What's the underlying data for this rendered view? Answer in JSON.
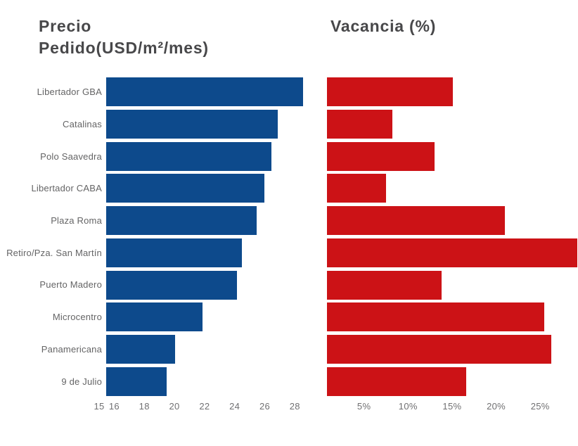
{
  "titles": {
    "left_line1": "Precio",
    "left_line2": "Pedido(USD/m²/mes)",
    "right": "Vacancia (%)"
  },
  "colors": {
    "background": "#ffffff",
    "precio_bar": "#0d4a8c",
    "vacancia_bar": "#cc1216",
    "title_text": "#48484a",
    "category_label_text": "#646465",
    "tick_label_text": "#707072"
  },
  "chart_data": [
    {
      "type": "bar",
      "orientation": "horizontal",
      "title": "Precio Pedido(USD/m²/mes)",
      "unit": "USD/m²/mes",
      "categories": [
        "Libertador GBA",
        "Catalinas",
        "Polo Saavedra",
        "Libertador CABA",
        "Plaza Roma",
        "Retiro/Pza. San Martín",
        "Puerto Madero",
        "Microcentro",
        "Panamericana",
        "9 de Julio"
      ],
      "values": [
        28.1,
        26.4,
        26.0,
        25.5,
        25.0,
        24.0,
        23.7,
        21.4,
        19.6,
        19.0
      ],
      "xlim": [
        15,
        28.5
      ],
      "tick_values": [
        15,
        16,
        18,
        20,
        22,
        24,
        26,
        28
      ],
      "tick_labels": [
        "15",
        "16",
        "18",
        "20",
        "22",
        "24",
        "26",
        "28"
      ],
      "bar_color": "#0d4a8c",
      "grid": false,
      "legend": "none"
    },
    {
      "type": "bar",
      "orientation": "horizontal",
      "title": "Vacancia (%)",
      "unit": "%",
      "categories": [
        "Libertador GBA",
        "Catalinas",
        "Polo Saavedra",
        "Libertador CABA",
        "Plaza Roma",
        "Retiro/Pza. San Martín",
        "Puerto Madero",
        "Microcentro",
        "Panamericana",
        "9 de Julio"
      ],
      "values": [
        14.3,
        7.4,
        12.2,
        6.7,
        20.2,
        28.4,
        13.0,
        24.7,
        25.5,
        15.8
      ],
      "xlim": [
        0,
        28.5
      ],
      "tick_values": [
        5,
        10,
        15,
        20,
        25
      ],
      "tick_labels": [
        "5%",
        "10%",
        "15%",
        "20%",
        "25%"
      ],
      "bar_color": "#cc1216",
      "grid": false,
      "legend": "none"
    }
  ]
}
